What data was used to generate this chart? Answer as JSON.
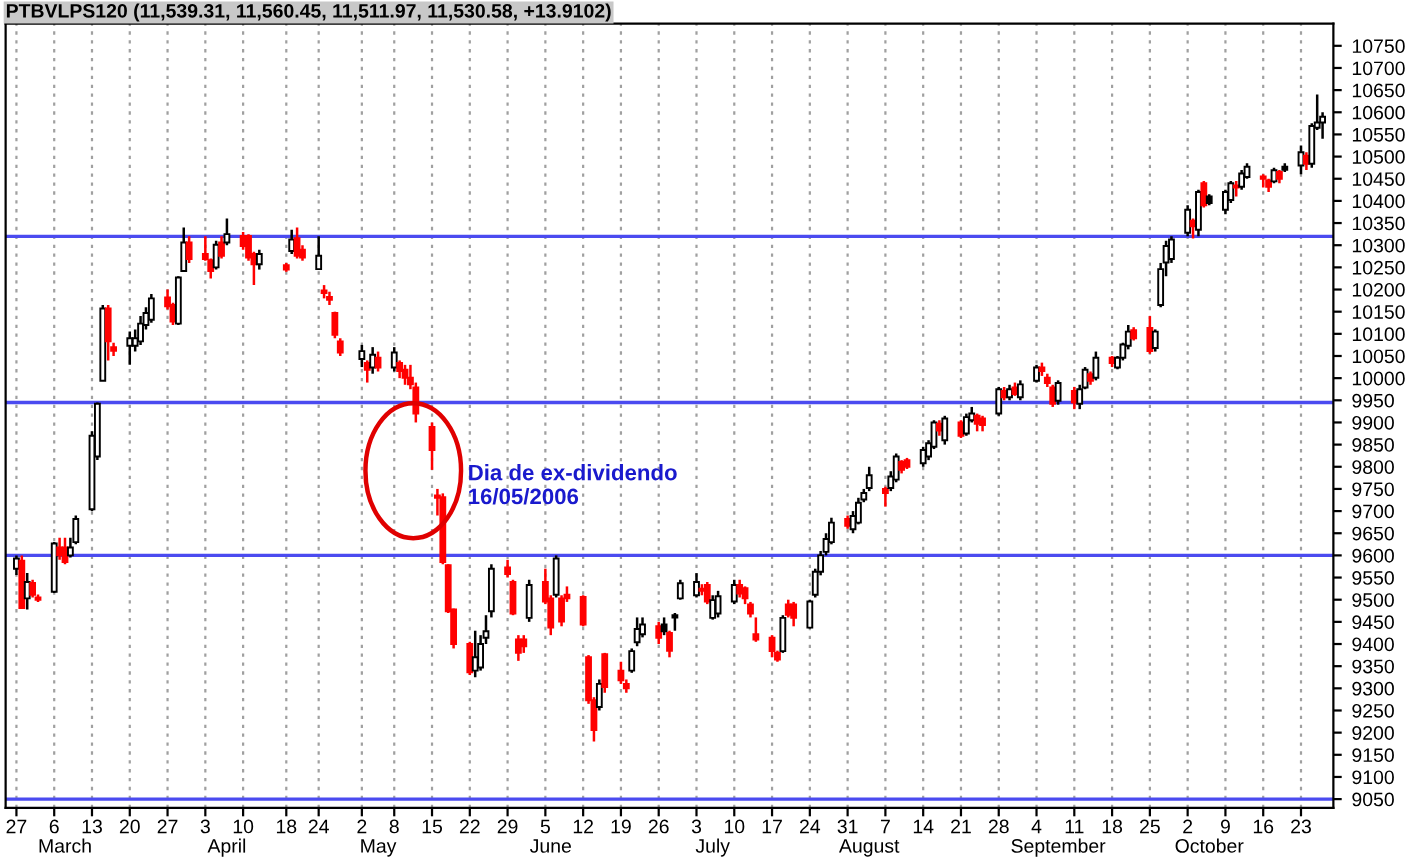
{
  "chart_data": {
    "type": "candlestick",
    "title": "PTBVLPS120 (11,539.31, 11,560.45, 11,511.97, 11,530.58, +13.9102)",
    "x": [
      "2006-02-27",
      "2006-02-28",
      "2006-03-01",
      "2006-03-02",
      "2006-03-03",
      "2006-03-06",
      "2006-03-07",
      "2006-03-08",
      "2006-03-09",
      "2006-03-10",
      "2006-03-13",
      "2006-03-14",
      "2006-03-15",
      "2006-03-16",
      "2006-03-17",
      "2006-03-20",
      "2006-03-21",
      "2006-03-22",
      "2006-03-23",
      "2006-03-24",
      "2006-03-27",
      "2006-03-28",
      "2006-03-29",
      "2006-03-30",
      "2006-03-31",
      "2006-04-03",
      "2006-04-04",
      "2006-04-05",
      "2006-04-06",
      "2006-04-07",
      "2006-04-10",
      "2006-04-11",
      "2006-04-12",
      "2006-04-13",
      "2006-04-18",
      "2006-04-19",
      "2006-04-20",
      "2006-04-21",
      "2006-04-24",
      "2006-04-25",
      "2006-04-26",
      "2006-04-27",
      "2006-04-28",
      "2006-05-02",
      "2006-05-03",
      "2006-05-04",
      "2006-05-05",
      "2006-05-08",
      "2006-05-09",
      "2006-05-10",
      "2006-05-11",
      "2006-05-12",
      "2006-05-15",
      "2006-05-16",
      "2006-05-17",
      "2006-05-18",
      "2006-05-19",
      "2006-05-22",
      "2006-05-23",
      "2006-05-24",
      "2006-05-25",
      "2006-05-26",
      "2006-05-29",
      "2006-05-30",
      "2006-05-31",
      "2006-06-01",
      "2006-06-02",
      "2006-06-05",
      "2006-06-06",
      "2006-06-07",
      "2006-06-08",
      "2006-06-09",
      "2006-06-12",
      "2006-06-13",
      "2006-06-14",
      "2006-06-15",
      "2006-06-16",
      "2006-06-19",
      "2006-06-20",
      "2006-06-21",
      "2006-06-22",
      "2006-06-23",
      "2006-06-26",
      "2006-06-27",
      "2006-06-28",
      "2006-06-29",
      "2006-06-30",
      "2006-07-03",
      "2006-07-04",
      "2006-07-05",
      "2006-07-06",
      "2006-07-07",
      "2006-07-10",
      "2006-07-11",
      "2006-07-12",
      "2006-07-13",
      "2006-07-14",
      "2006-07-17",
      "2006-07-18",
      "2006-07-19",
      "2006-07-20",
      "2006-07-21",
      "2006-07-24",
      "2006-07-25",
      "2006-07-26",
      "2006-07-27",
      "2006-07-28",
      "2006-07-31",
      "2006-08-01",
      "2006-08-02",
      "2006-08-03",
      "2006-08-04",
      "2006-08-07",
      "2006-08-08",
      "2006-08-09",
      "2006-08-10",
      "2006-08-11",
      "2006-08-14",
      "2006-08-15",
      "2006-08-16",
      "2006-08-17",
      "2006-08-18",
      "2006-08-21",
      "2006-08-22",
      "2006-08-23",
      "2006-08-24",
      "2006-08-25",
      "2006-08-28",
      "2006-08-29",
      "2006-08-30",
      "2006-08-31",
      "2006-09-01",
      "2006-09-04",
      "2006-09-05",
      "2006-09-06",
      "2006-09-07",
      "2006-09-08",
      "2006-09-11",
      "2006-09-12",
      "2006-09-13",
      "2006-09-14",
      "2006-09-15",
      "2006-09-18",
      "2006-09-19",
      "2006-09-20",
      "2006-09-21",
      "2006-09-22",
      "2006-09-25",
      "2006-09-26",
      "2006-09-27",
      "2006-09-28",
      "2006-09-29",
      "2006-10-02",
      "2006-10-03",
      "2006-10-04",
      "2006-10-05",
      "2006-10-06",
      "2006-10-09",
      "2006-10-10",
      "2006-10-11",
      "2006-10-12",
      "2006-10-13",
      "2006-10-16",
      "2006-10-17",
      "2006-10-18",
      "2006-10-19",
      "2006-10-20",
      "2006-10-23",
      "2006-10-24",
      "2006-10-25",
      "2006-10-26",
      "2006-10-27"
    ],
    "ohlc": [
      [
        9570,
        9600,
        9556,
        9593
      ],
      [
        9588,
        9600,
        9481,
        9481
      ],
      [
        9503,
        9560,
        9478,
        9540
      ],
      [
        9538,
        9545,
        9505,
        9511
      ],
      [
        9505,
        9512,
        9495,
        9500
      ],
      [
        9518,
        9630,
        9515,
        9627
      ],
      [
        9618,
        9640,
        9590,
        9600
      ],
      [
        9618,
        9640,
        9580,
        9585
      ],
      [
        9600,
        9640,
        9595,
        9618
      ],
      [
        9630,
        9690,
        9625,
        9682
      ],
      [
        9704,
        9880,
        9700,
        9870
      ],
      [
        9823,
        9945,
        9815,
        9942
      ],
      [
        9994,
        10165,
        9994,
        10157
      ],
      [
        10157,
        10165,
        10040,
        10083
      ],
      [
        10070,
        10080,
        10050,
        10062
      ],
      [
        10073,
        10105,
        10030,
        10090
      ],
      [
        10073,
        10110,
        10060,
        10090
      ],
      [
        10083,
        10140,
        10075,
        10123
      ],
      [
        10120,
        10160,
        10110,
        10147
      ],
      [
        10132,
        10190,
        10125,
        10180
      ],
      [
        10182,
        10200,
        10155,
        10162
      ],
      [
        10165,
        10170,
        10120,
        10128
      ],
      [
        10123,
        10230,
        10120,
        10227
      ],
      [
        10242,
        10340,
        10240,
        10306
      ],
      [
        10306,
        10320,
        10260,
        10269
      ],
      [
        10280,
        10320,
        10265,
        10269
      ],
      [
        10266,
        10270,
        10225,
        10242
      ],
      [
        10250,
        10310,
        10245,
        10301
      ],
      [
        10306,
        10320,
        10270,
        10276
      ],
      [
        10306,
        10360,
        10300,
        10325
      ],
      [
        10321,
        10330,
        10290,
        10298
      ],
      [
        10321,
        10325,
        10265,
        10272
      ],
      [
        10280,
        10285,
        10210,
        10257
      ],
      [
        10257,
        10290,
        10245,
        10280
      ],
      [
        10255,
        10260,
        10240,
        10245
      ],
      [
        10287,
        10335,
        10280,
        10313
      ],
      [
        10316,
        10340,
        10270,
        10276
      ],
      [
        10290,
        10300,
        10265,
        10272
      ],
      [
        10246,
        10320,
        10246,
        10276
      ],
      [
        10198,
        10210,
        10180,
        10192
      ],
      [
        10183,
        10195,
        10165,
        10177
      ],
      [
        10147,
        10150,
        10090,
        10098
      ],
      [
        10083,
        10090,
        10050,
        10058
      ],
      [
        10043,
        10075,
        10025,
        10061
      ],
      [
        10034,
        10040,
        9990,
        10019
      ],
      [
        10024,
        10070,
        10010,
        10053
      ],
      [
        10046,
        10060,
        10015,
        10024
      ],
      [
        10024,
        10070,
        10015,
        10058
      ],
      [
        10034,
        10040,
        10000,
        10016
      ],
      [
        10019,
        10030,
        9985,
        10001
      ],
      [
        10001,
        10030,
        9975,
        9986
      ],
      [
        9979,
        9990,
        9900,
        9920
      ],
      [
        9890,
        9900,
        9793,
        9838
      ],
      [
        9735,
        9750,
        9690,
        9730
      ],
      [
        9731,
        9740,
        9580,
        9585
      ],
      [
        9578,
        9580,
        9470,
        9474
      ],
      [
        9478,
        9480,
        9390,
        9400
      ],
      [
        9400,
        9405,
        9330,
        9336
      ],
      [
        9340,
        9430,
        9325,
        9370
      ],
      [
        9347,
        9420,
        9340,
        9400
      ],
      [
        9414,
        9465,
        9400,
        9429
      ],
      [
        9474,
        9580,
        9460,
        9570
      ],
      [
        9573,
        9590,
        9550,
        9558
      ],
      [
        9540,
        9545,
        9465,
        9469
      ],
      [
        9410,
        9420,
        9362,
        9380
      ],
      [
        9410,
        9420,
        9380,
        9395
      ],
      [
        9459,
        9545,
        9450,
        9533
      ],
      [
        9540,
        9570,
        9490,
        9496
      ],
      [
        9503,
        9510,
        9420,
        9437
      ],
      [
        9511,
        9600,
        9505,
        9593
      ],
      [
        9503,
        9510,
        9440,
        9451
      ],
      [
        9511,
        9530,
        9495,
        9503
      ],
      [
        9506,
        9510,
        9440,
        9444
      ],
      [
        9370,
        9375,
        9265,
        9273
      ],
      [
        9273,
        9280,
        9180,
        9206
      ],
      [
        9258,
        9320,
        9250,
        9310
      ],
      [
        9377,
        9380,
        9290,
        9303
      ],
      [
        9340,
        9360,
        9310,
        9318
      ],
      [
        9310,
        9320,
        9290,
        9300
      ],
      [
        9340,
        9390,
        9335,
        9384
      ],
      [
        9404,
        9460,
        9395,
        9434
      ],
      [
        9422,
        9460,
        9415,
        9444
      ],
      [
        9440,
        9450,
        9400,
        9414
      ],
      [
        9444,
        9460,
        9420,
        9429
      ],
      [
        9425,
        9430,
        9370,
        9385
      ],
      [
        9465,
        9470,
        9430,
        9460
      ],
      [
        9503,
        9545,
        9500,
        9537
      ],
      [
        9510,
        9560,
        9505,
        9540
      ],
      [
        9525,
        9535,
        9510,
        9520
      ],
      [
        9533,
        9540,
        9490,
        9496
      ],
      [
        9459,
        9510,
        9455,
        9499
      ],
      [
        9469,
        9520,
        9460,
        9508
      ],
      [
        9496,
        9545,
        9490,
        9533
      ],
      [
        9533,
        9545,
        9505,
        9514
      ],
      [
        9526,
        9530,
        9490,
        9503
      ],
      [
        9489,
        9495,
        9460,
        9469
      ],
      [
        9422,
        9460,
        9405,
        9410
      ],
      [
        9414,
        9420,
        9370,
        9384
      ],
      [
        9380,
        9385,
        9360,
        9365
      ],
      [
        9384,
        9465,
        9380,
        9459
      ],
      [
        9489,
        9500,
        9460,
        9466
      ],
      [
        9489,
        9495,
        9440,
        9459
      ],
      [
        9437,
        9500,
        9435,
        9496
      ],
      [
        9511,
        9570,
        9505,
        9563
      ],
      [
        9563,
        9610,
        9555,
        9600
      ],
      [
        9608,
        9650,
        9600,
        9637
      ],
      [
        9630,
        9685,
        9625,
        9674
      ],
      [
        9682,
        9690,
        9660,
        9667
      ],
      [
        9659,
        9700,
        9650,
        9689
      ],
      [
        9674,
        9730,
        9670,
        9719
      ],
      [
        9726,
        9750,
        9720,
        9741
      ],
      [
        9752,
        9800,
        9745,
        9781
      ],
      [
        9750,
        9755,
        9710,
        9741
      ],
      [
        9752,
        9790,
        9745,
        9778
      ],
      [
        9771,
        9830,
        9765,
        9823
      ],
      [
        9811,
        9815,
        9785,
        9793
      ],
      [
        9815,
        9820,
        9795,
        9800
      ],
      [
        9808,
        9845,
        9800,
        9838
      ],
      [
        9823,
        9860,
        9815,
        9853
      ],
      [
        9845,
        9905,
        9840,
        9900
      ],
      [
        9897,
        9905,
        9870,
        9882
      ],
      [
        9860,
        9915,
        9850,
        9909
      ],
      [
        9900,
        9905,
        9865,
        9870
      ],
      [
        9875,
        9920,
        9870,
        9912
      ],
      [
        9905,
        9935,
        9900,
        9920
      ],
      [
        9915,
        9920,
        9880,
        9897
      ],
      [
        9909,
        9915,
        9880,
        9894
      ],
      [
        9920,
        9980,
        9915,
        9975
      ],
      [
        9971,
        9980,
        9950,
        9957
      ],
      [
        9957,
        9985,
        9950,
        9975
      ],
      [
        9979,
        9990,
        9960,
        9964
      ],
      [
        9957,
        9995,
        9950,
        9986
      ],
      [
        9994,
        10030,
        9990,
        10024
      ],
      [
        10024,
        10035,
        10005,
        10016
      ],
      [
        10001,
        10010,
        9980,
        9989
      ],
      [
        9979,
        9985,
        9935,
        9942
      ],
      [
        9949,
        9995,
        9940,
        9989
      ],
      [
        9971,
        9980,
        9930,
        9945
      ],
      [
        9942,
        9985,
        9930,
        9975
      ],
      [
        9979,
        10025,
        9975,
        10019
      ],
      [
        10009,
        10015,
        9985,
        9994
      ],
      [
        10001,
        10060,
        9995,
        10046
      ],
      [
        10046,
        10050,
        10025,
        10034
      ],
      [
        10024,
        10050,
        10020,
        10046
      ],
      [
        10046,
        10080,
        10040,
        10076
      ],
      [
        10073,
        10120,
        10065,
        10105
      ],
      [
        10108,
        10115,
        10085,
        10090
      ],
      [
        10113,
        10140,
        10055,
        10061
      ],
      [
        10068,
        10110,
        10060,
        10105
      ],
      [
        10165,
        10260,
        10160,
        10246
      ],
      [
        10261,
        10310,
        10230,
        10298
      ],
      [
        10269,
        10320,
        10260,
        10313
      ],
      [
        10328,
        10390,
        10320,
        10380
      ],
      [
        10355,
        10360,
        10315,
        10343
      ],
      [
        10335,
        10425,
        10320,
        10420
      ],
      [
        10440,
        10445,
        10385,
        10390
      ],
      [
        10410,
        10415,
        10390,
        10395
      ],
      [
        10380,
        10425,
        10370,
        10420
      ],
      [
        10402,
        10445,
        10395,
        10440
      ],
      [
        10435,
        10445,
        10410,
        10430
      ],
      [
        10432,
        10470,
        10425,
        10462
      ],
      [
        10454,
        10485,
        10450,
        10477
      ],
      [
        10455,
        10460,
        10430,
        10450
      ],
      [
        10446,
        10450,
        10420,
        10432
      ],
      [
        10444,
        10475,
        10440,
        10469
      ],
      [
        10465,
        10470,
        10440,
        10450
      ],
      [
        10477,
        10485,
        10465,
        10470
      ],
      [
        10480,
        10525,
        10460,
        10510
      ],
      [
        10502,
        10510,
        10470,
        10484
      ],
      [
        10484,
        10575,
        10475,
        10569
      ],
      [
        10565,
        10640,
        10560,
        10577
      ],
      [
        10577,
        10600,
        10540,
        10590
      ]
    ],
    "colors": [
      "#ffffff",
      "#ff0000",
      "#ffffff",
      "#ff0000",
      "#ff0000",
      "#ffffff",
      "#ff0000",
      "#ff0000",
      "#ffffff",
      "#ffffff",
      "#ffffff",
      "#ffffff",
      "#ffffff",
      "#ff0000",
      "#ff0000",
      "#ffffff",
      "#ffffff",
      "#ffffff",
      "#ffffff",
      "#ffffff",
      "#ff0000",
      "#ff0000",
      "#ffffff",
      "#ffffff",
      "#ff0000",
      "#ff0000",
      "#ff0000",
      "#ffffff",
      "#ff0000",
      "#ffffff",
      "#ff0000",
      "#ff0000",
      "#ff0000",
      "#ffffff",
      "#ff0000",
      "#ffffff",
      "#ff0000",
      "#ff0000",
      "#ffffff",
      "#ff0000",
      "#ff0000",
      "#ff0000",
      "#ff0000",
      "#ffffff",
      "#ff0000",
      "#ffffff",
      "#ff0000",
      "#ffffff",
      "#ff0000",
      "#ff0000",
      "#ff0000",
      "#ff0000",
      "#ff0000",
      "#ff0000",
      "#ff0000",
      "#ff0000",
      "#ff0000",
      "#ff0000",
      "#ffffff",
      "#ffffff",
      "#ffffff",
      "#ffffff",
      "#ff0000",
      "#ff0000",
      "#ff0000",
      "#ff0000",
      "#ffffff",
      "#ff0000",
      "#ff0000",
      "#ffffff",
      "#ff0000",
      "#ff0000",
      "#ff0000",
      "#ff0000",
      "#ff0000",
      "#ffffff",
      "#ff0000",
      "#ff0000",
      "#ff0000",
      "#ffffff",
      "#ffffff",
      "#ffffff",
      "#ff0000",
      "#000000",
      "#ff0000",
      "#000000",
      "#ffffff",
      "#ffffff",
      "#ff0000",
      "#ff0000",
      "#ffffff",
      "#ffffff",
      "#ffffff",
      "#ff0000",
      "#ff0000",
      "#ff0000",
      "#ff0000",
      "#ff0000",
      "#ff0000",
      "#ffffff",
      "#ff0000",
      "#ff0000",
      "#ffffff",
      "#ffffff",
      "#ffffff",
      "#ffffff",
      "#ffffff",
      "#ff0000",
      "#ffffff",
      "#ffffff",
      "#ffffff",
      "#ffffff",
      "#ff0000",
      "#ffffff",
      "#ffffff",
      "#ff0000",
      "#ff0000",
      "#ffffff",
      "#ffffff",
      "#ffffff",
      "#ff0000",
      "#ffffff",
      "#ff0000",
      "#ffffff",
      "#ffffff",
      "#ff0000",
      "#ff0000",
      "#ffffff",
      "#ff0000",
      "#ffffff",
      "#ff0000",
      "#ffffff",
      "#ffffff",
      "#ff0000",
      "#ff0000",
      "#ff0000",
      "#ffffff",
      "#ff0000",
      "#ffffff",
      "#ffffff",
      "#ff0000",
      "#ffffff",
      "#ff0000",
      "#ffffff",
      "#ffffff",
      "#ffffff",
      "#ff0000",
      "#ff0000",
      "#ffffff",
      "#ffffff",
      "#ffffff",
      "#ffffff",
      "#ffffff",
      "#ff0000",
      "#ffffff",
      "#ff0000",
      "#000000",
      "#ffffff",
      "#ffffff",
      "#ff0000",
      "#ffffff",
      "#ffffff",
      "#ff0000",
      "#ff0000",
      "#ffffff",
      "#ff0000",
      "#000000",
      "#ffffff",
      "#ff0000",
      "#ffffff",
      "#ffffff",
      "#ffffff"
    ],
    "xlim": [
      "2006-02-25",
      "2006-10-29"
    ],
    "xticks": [
      {
        "value": "2006-02-27",
        "label": "27"
      },
      {
        "value": "2006-03-06",
        "label": "6"
      },
      {
        "value": "2006-03-13",
        "label": "13"
      },
      {
        "value": "2006-03-20",
        "label": "20"
      },
      {
        "value": "2006-03-27",
        "label": "27"
      },
      {
        "value": "2006-04-03",
        "label": "3"
      },
      {
        "value": "2006-04-10",
        "label": "10"
      },
      {
        "value": "2006-04-18",
        "label": "18"
      },
      {
        "value": "2006-04-24",
        "label": "24"
      },
      {
        "value": "2006-05-02",
        "label": "2"
      },
      {
        "value": "2006-05-08",
        "label": "8"
      },
      {
        "value": "2006-05-15",
        "label": "15"
      },
      {
        "value": "2006-05-22",
        "label": "22"
      },
      {
        "value": "2006-05-29",
        "label": "29"
      },
      {
        "value": "2006-06-05",
        "label": "5"
      },
      {
        "value": "2006-06-12",
        "label": "12"
      },
      {
        "value": "2006-06-19",
        "label": "19"
      },
      {
        "value": "2006-06-26",
        "label": "26"
      },
      {
        "value": "2006-07-03",
        "label": "3"
      },
      {
        "value": "2006-07-10",
        "label": "10"
      },
      {
        "value": "2006-07-17",
        "label": "17"
      },
      {
        "value": "2006-07-24",
        "label": "24"
      },
      {
        "value": "2006-07-31",
        "label": "31"
      },
      {
        "value": "2006-08-07",
        "label": "7"
      },
      {
        "value": "2006-08-14",
        "label": "14"
      },
      {
        "value": "2006-08-21",
        "label": "21"
      },
      {
        "value": "2006-08-28",
        "label": "28"
      },
      {
        "value": "2006-09-04",
        "label": "4"
      },
      {
        "value": "2006-09-11",
        "label": "11"
      },
      {
        "value": "2006-09-18",
        "label": "18"
      },
      {
        "value": "2006-09-25",
        "label": "25"
      },
      {
        "value": "2006-10-02",
        "label": "2"
      },
      {
        "value": "2006-10-09",
        "label": "9"
      },
      {
        "value": "2006-10-16",
        "label": "16"
      },
      {
        "value": "2006-10-23",
        "label": "23"
      }
    ],
    "x2lim": [
      "2006-02-25",
      "2006-10-29"
    ],
    "x2ticks": [
      {
        "value": "2006-03-08",
        "label": "March"
      },
      {
        "value": "2006-04-07",
        "label": "April"
      },
      {
        "value": "2006-05-05",
        "label": "May"
      },
      {
        "value": "2006-06-06",
        "label": "June"
      },
      {
        "value": "2006-07-06",
        "label": "July"
      },
      {
        "value": "2006-08-04",
        "label": "August"
      },
      {
        "value": "2006-09-08",
        "label": "September"
      },
      {
        "value": "2006-10-06",
        "label": "October"
      }
    ],
    "ylim": [
      9030,
      10800
    ],
    "yticks": [
      9050,
      9100,
      9150,
      9200,
      9250,
      9300,
      9350,
      9400,
      9450,
      9500,
      9550,
      9600,
      9650,
      9700,
      9750,
      9800,
      9850,
      9900,
      9950,
      10000,
      10050,
      10100,
      10150,
      10200,
      10250,
      10300,
      10350,
      10400,
      10450,
      10500,
      10550,
      10600,
      10650,
      10700,
      10750
    ],
    "grid": "x",
    "ref_lines": [
      {
        "axis": "y",
        "value": 10320,
        "color": "#4b4bf0"
      },
      {
        "axis": "y",
        "value": 9945,
        "color": "#4b4bf0"
      },
      {
        "axis": "y",
        "value": 9600,
        "color": "#4b4bf0"
      },
      {
        "axis": "y",
        "value": 9050,
        "color": "#4b4bf0"
      }
    ],
    "annotations": [
      "Dia de ex-dividendo\n16/05/2006"
    ]
  }
}
